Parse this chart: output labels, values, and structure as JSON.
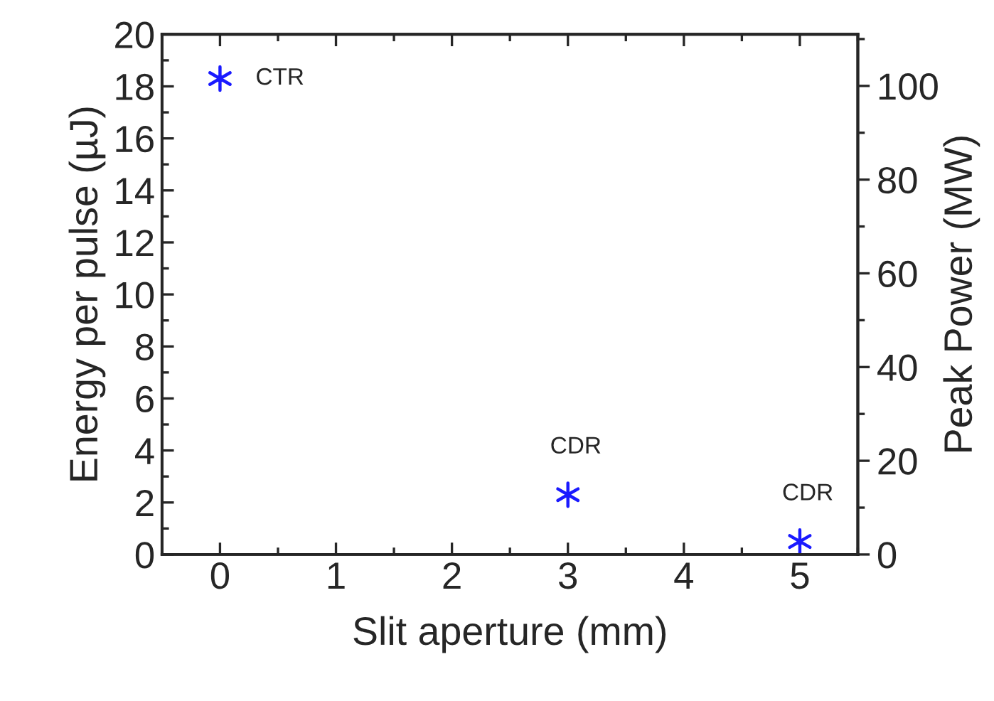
{
  "chart_data": {
    "type": "scatter",
    "xlabel": "Slit aperture (mm)",
    "ylabel": "Energy per pulse (µJ)",
    "y2label": "Peak Power (MW)",
    "x": [
      0,
      3,
      5
    ],
    "series": [
      {
        "color": "#1a1aff",
        "values": [
          18.3,
          2.3,
          0.5
        ]
      }
    ],
    "marker": "cross",
    "xlim": [
      -0.5,
      5.5
    ],
    "xticks": [
      0,
      1,
      2,
      3,
      4,
      5
    ],
    "ylim": [
      0,
      20
    ],
    "yticks": [
      0,
      2,
      4,
      6,
      8,
      10,
      12,
      14,
      16,
      18,
      20
    ],
    "y2lim": [
      0,
      111
    ],
    "y2ticks": [
      0,
      20,
      40,
      60,
      80,
      100
    ],
    "annotations": [
      {
        "text": "CTR",
        "x": 0,
        "y": 18.3
      },
      {
        "text": "CDR",
        "x": 3,
        "y": 2.3
      },
      {
        "text": "CDR",
        "x": 5,
        "y": 0.5
      }
    ],
    "grid": false
  }
}
